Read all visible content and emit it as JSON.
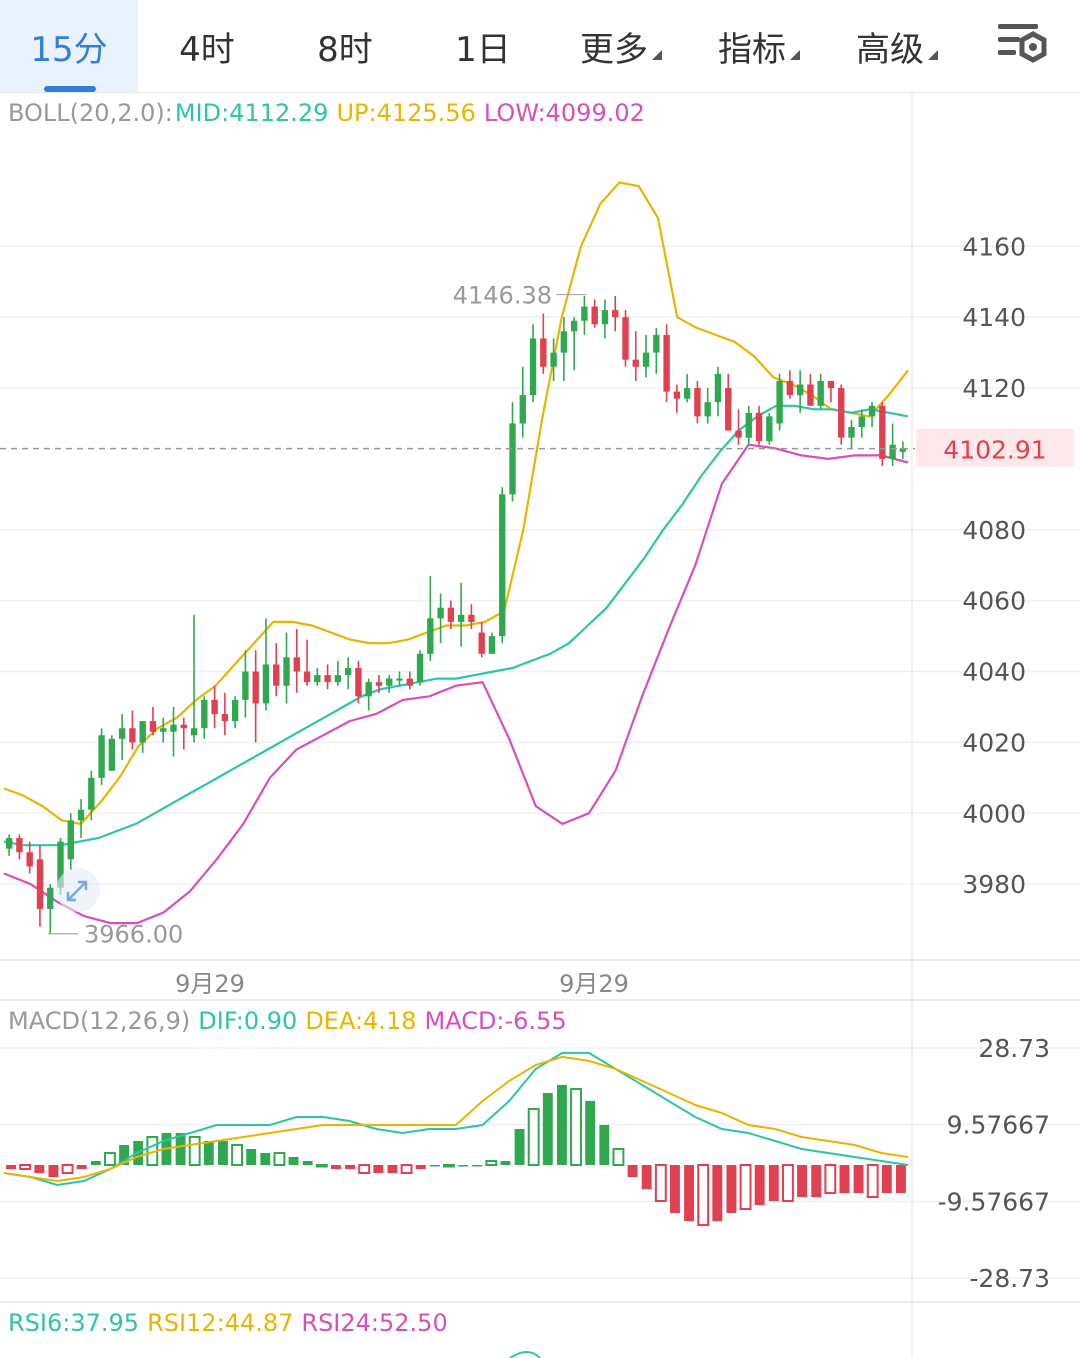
{
  "tabs": [
    {
      "label": "15分",
      "active": true,
      "dropdown": false
    },
    {
      "label": "4时",
      "active": false,
      "dropdown": false
    },
    {
      "label": "8时",
      "active": false,
      "dropdown": false
    },
    {
      "label": "1日",
      "active": false,
      "dropdown": false
    },
    {
      "label": "更多",
      "active": false,
      "dropdown": true
    },
    {
      "label": "指标",
      "active": false,
      "dropdown": true
    },
    {
      "label": "高级",
      "active": false,
      "dropdown": true
    }
  ],
  "settings_icon": "chart-settings-icon",
  "colors": {
    "mid": "#2ec4a6",
    "up": "#e8b500",
    "low": "#d94fb8",
    "rise": "#2fa84f",
    "fall": "#e04050",
    "price": "#e04050",
    "muted": "#999999"
  },
  "boll": {
    "label": "BOLL(20,2.0):",
    "mid": "MID:4112.29",
    "up": "UP:4125.56",
    "low": "LOW:4099.02"
  },
  "price_axis": {
    "ticks": [
      {
        "value": 4160,
        "label": "4160"
      },
      {
        "value": 4140,
        "label": "4140"
      },
      {
        "value": 4120,
        "label": "4120"
      },
      {
        "value": 4080,
        "label": "4080"
      },
      {
        "value": 4060,
        "label": "4060"
      },
      {
        "value": 4040,
        "label": "4040"
      },
      {
        "value": 4020,
        "label": "4020"
      },
      {
        "value": 4000,
        "label": "4000"
      },
      {
        "value": 3980,
        "label": "3980"
      }
    ],
    "current_price": 4102.91,
    "current_label": "4102.91"
  },
  "annotations": {
    "high": "4146.38",
    "high_value": 4146.38,
    "low": "3966.00",
    "low_value": 3966.0
  },
  "date_labels": [
    "9月29",
    "9月29"
  ],
  "macd": {
    "label": "MACD(12,26,9)",
    "dif": "DIF:0.90",
    "dea": "DEA:4.18",
    "macd": "MACD:-6.55",
    "ticks": [
      {
        "value": 28.73,
        "label": "28.73"
      },
      {
        "value": 9.57667,
        "label": "9.57667"
      },
      {
        "value": -9.57667,
        "label": "-9.57667"
      },
      {
        "value": -28.73,
        "label": "-28.73"
      }
    ]
  },
  "rsi": {
    "rsi6": "RSI6:37.95",
    "rsi12": "RSI12:44.87",
    "rsi24": "RSI24:52.50"
  },
  "chart_data": {
    "type": "candlestick",
    "ylim": [
      3960,
      4190
    ],
    "ohlc": [
      [
        3990,
        3994,
        3988,
        3993
      ],
      [
        3993,
        3994,
        3987,
        3989
      ],
      [
        3989,
        3992,
        3983,
        3985
      ],
      [
        3987,
        3991,
        3968,
        3973
      ],
      [
        3973,
        3980,
        3966,
        3979
      ],
      [
        3979,
        3993,
        3977,
        3992
      ],
      [
        3987,
        4000,
        3984,
        3998
      ],
      [
        3998,
        4004,
        3993,
        4001
      ],
      [
        4001,
        4012,
        3998,
        4010
      ],
      [
        4010,
        4024,
        4008,
        4022
      ],
      [
        4012,
        4022,
        4012,
        4021
      ],
      [
        4021,
        4028,
        4015,
        4024
      ],
      [
        4024,
        4029,
        4018,
        4020
      ],
      [
        4020,
        4026,
        4017,
        4026
      ],
      [
        4026,
        4030,
        4022,
        4023
      ],
      [
        4023,
        4027,
        4020,
        4024
      ],
      [
        4023,
        4030,
        4016,
        4025
      ],
      [
        4025,
        4027,
        4018,
        4024
      ],
      [
        4022,
        4056,
        4020,
        4024
      ],
      [
        4024,
        4033,
        4021,
        4032
      ],
      [
        4032,
        4036,
        4024,
        4028
      ],
      [
        4028,
        4034,
        4022,
        4026
      ],
      [
        4026,
        4033,
        4024,
        4032
      ],
      [
        4032,
        4046,
        4027,
        4040
      ],
      [
        4040,
        4046,
        4020,
        4031
      ],
      [
        4031,
        4055,
        4029,
        4042
      ],
      [
        4042,
        4048,
        4033,
        4036
      ],
      [
        4036,
        4051,
        4031,
        4044
      ],
      [
        4044,
        4052,
        4034,
        4040
      ],
      [
        4040,
        4049,
        4036,
        4037
      ],
      [
        4037,
        4041,
        4036,
        4039
      ],
      [
        4039,
        4042,
        4035,
        4037
      ],
      [
        4037,
        4043,
        4036,
        4039
      ],
      [
        4039,
        4044,
        4035,
        4041
      ],
      [
        4041,
        4043,
        4031,
        4033
      ],
      [
        4033,
        4038,
        4029,
        4037
      ],
      [
        4037,
        4039,
        4034,
        4036
      ],
      [
        4036,
        4039,
        4034,
        4038
      ],
      [
        4038,
        4040,
        4036,
        4038
      ],
      [
        4038,
        4040,
        4035,
        4036
      ],
      [
        4037,
        4046,
        4036,
        4045
      ],
      [
        4045,
        4067,
        4043,
        4055
      ],
      [
        4055,
        4062,
        4048,
        4058
      ],
      [
        4058,
        4060,
        4052,
        4054
      ],
      [
        4054,
        4065,
        4047,
        4056
      ],
      [
        4056,
        4059,
        4052,
        4054
      ],
      [
        4051,
        4054,
        4044,
        4045
      ],
      [
        4045,
        4051,
        4045,
        4050
      ],
      [
        4050,
        4092,
        4048,
        4090
      ],
      [
        4090,
        4116,
        4088,
        4110
      ],
      [
        4110,
        4126,
        4106,
        4118
      ],
      [
        4118,
        4138,
        4116,
        4134
      ],
      [
        4134,
        4141,
        4124,
        4126
      ],
      [
        4126,
        4134,
        4122,
        4130
      ],
      [
        4130,
        4140,
        4122,
        4136
      ],
      [
        4136,
        4140,
        4125,
        4139
      ],
      [
        4139,
        4146,
        4135,
        4143
      ],
      [
        4143,
        4145,
        4137,
        4138
      ],
      [
        4138,
        4145,
        4134,
        4142
      ],
      [
        4142,
        4146,
        4136,
        4140
      ],
      [
        4140,
        4142,
        4126,
        4128
      ],
      [
        4128,
        4136,
        4122,
        4126
      ],
      [
        4126,
        4135,
        4123,
        4130
      ],
      [
        4130,
        4137,
        4124,
        4135
      ],
      [
        4135,
        4138,
        4116,
        4119
      ],
      [
        4119,
        4121,
        4113,
        4117
      ],
      [
        4117,
        4124,
        4116,
        4120
      ],
      [
        4120,
        4122,
        4110,
        4112
      ],
      [
        4112,
        4120,
        4110,
        4116
      ],
      [
        4116,
        4126,
        4112,
        4124
      ],
      [
        4120,
        4124,
        4109,
        4108
      ],
      [
        4108,
        4114,
        4104,
        4106
      ],
      [
        4106,
        4115,
        4104,
        4113
      ],
      [
        4113,
        4115,
        4104,
        4105
      ],
      [
        4105,
        4113,
        4104,
        4112
      ],
      [
        4110,
        4124,
        4108,
        4122
      ],
      [
        4122,
        4125,
        4117,
        4118
      ],
      [
        4118,
        4125,
        4113,
        4121
      ],
      [
        4121,
        4124,
        4115,
        4115
      ],
      [
        4115,
        4124,
        4114,
        4122
      ],
      [
        4122,
        4122,
        4116,
        4120
      ],
      [
        4120,
        4121,
        4104,
        4106
      ],
      [
        4106,
        4111,
        4103,
        4109
      ],
      [
        4109,
        4114,
        4106,
        4112
      ],
      [
        4112,
        4116,
        4109,
        4115
      ],
      [
        4115,
        4116,
        4098,
        4100
      ],
      [
        4100,
        4110,
        4098,
        4104
      ],
      [
        4102,
        4105,
        4100,
        4103
      ]
    ],
    "boll_mid": [
      3992,
      3991,
      3991,
      3991,
      3992,
      3993,
      3995,
      3997,
      4000,
      4003,
      4006,
      4009,
      4012,
      4015,
      4018,
      4021,
      4024,
      4027,
      4030,
      4033,
      4035,
      4036,
      4037,
      4038,
      4038,
      4039,
      4040,
      4041,
      4043,
      4045,
      4048,
      4053,
      4058,
      4065,
      4072,
      4080,
      4087,
      4095,
      4102,
      4108,
      4112,
      4115,
      4115,
      4114,
      4114,
      4113,
      4114,
      4113,
      4112
    ],
    "boll_up": [
      4007,
      4005,
      4002,
      3998,
      3997,
      4003,
      4010,
      4019,
      4024,
      4027,
      4032,
      4036,
      4042,
      4048,
      4054,
      4054,
      4053,
      4051,
      4049,
      4048,
      4048,
      4049,
      4051,
      4053,
      4053,
      4054,
      4057,
      4080,
      4112,
      4140,
      4160,
      4172,
      4178,
      4177,
      4168,
      4140,
      4137,
      4135,
      4133,
      4129,
      4123,
      4121,
      4118,
      4114,
      4113,
      4112,
      4118,
      4125
    ],
    "boll_low": [
      3983,
      3980,
      3975,
      3971,
      3969,
      3969,
      3972,
      3978,
      3987,
      3997,
      4010,
      4018,
      4022,
      4026,
      4028,
      4032,
      4033,
      4036,
      4037,
      4021,
      4002,
      3997,
      4000,
      4012,
      4033,
      4052,
      4070,
      4093,
      4104,
      4103,
      4101,
      4100,
      4101,
      4101,
      4099
    ],
    "macd_hist": [
      -1,
      -1,
      -2,
      -3,
      -2,
      -1,
      1,
      3,
      5,
      6,
      7,
      8,
      8,
      7,
      6,
      6,
      5,
      4,
      3,
      3,
      2,
      1,
      0,
      -1,
      -1,
      -2,
      -2,
      -2,
      -2,
      -1,
      0,
      0,
      0,
      0,
      1,
      1,
      9,
      14,
      18,
      20,
      19,
      16,
      10,
      4,
      -3,
      -6,
      -9,
      -12,
      -14,
      -15,
      -14,
      -12,
      -11,
      -10,
      -9,
      -9,
      -8,
      -8,
      -7,
      -7,
      -7,
      -8,
      -7,
      -7
    ],
    "macd_dif": [
      -2,
      -3,
      -5,
      -4,
      -1,
      3,
      6,
      8,
      10,
      10,
      10,
      12,
      12,
      11,
      9,
      8,
      9,
      9,
      10,
      16,
      24,
      28,
      28,
      24,
      20,
      16,
      12,
      9,
      8,
      6,
      4,
      3,
      2,
      1,
      0
    ],
    "macd_dea": [
      -2,
      -3,
      -4,
      -3,
      -1,
      2,
      4,
      5,
      6,
      7,
      8,
      9,
      10,
      10,
      10,
      10,
      10,
      10,
      16,
      21,
      25,
      27,
      26,
      24,
      21,
      18,
      15,
      13,
      10,
      9,
      7,
      6,
      5,
      3,
      2
    ]
  }
}
